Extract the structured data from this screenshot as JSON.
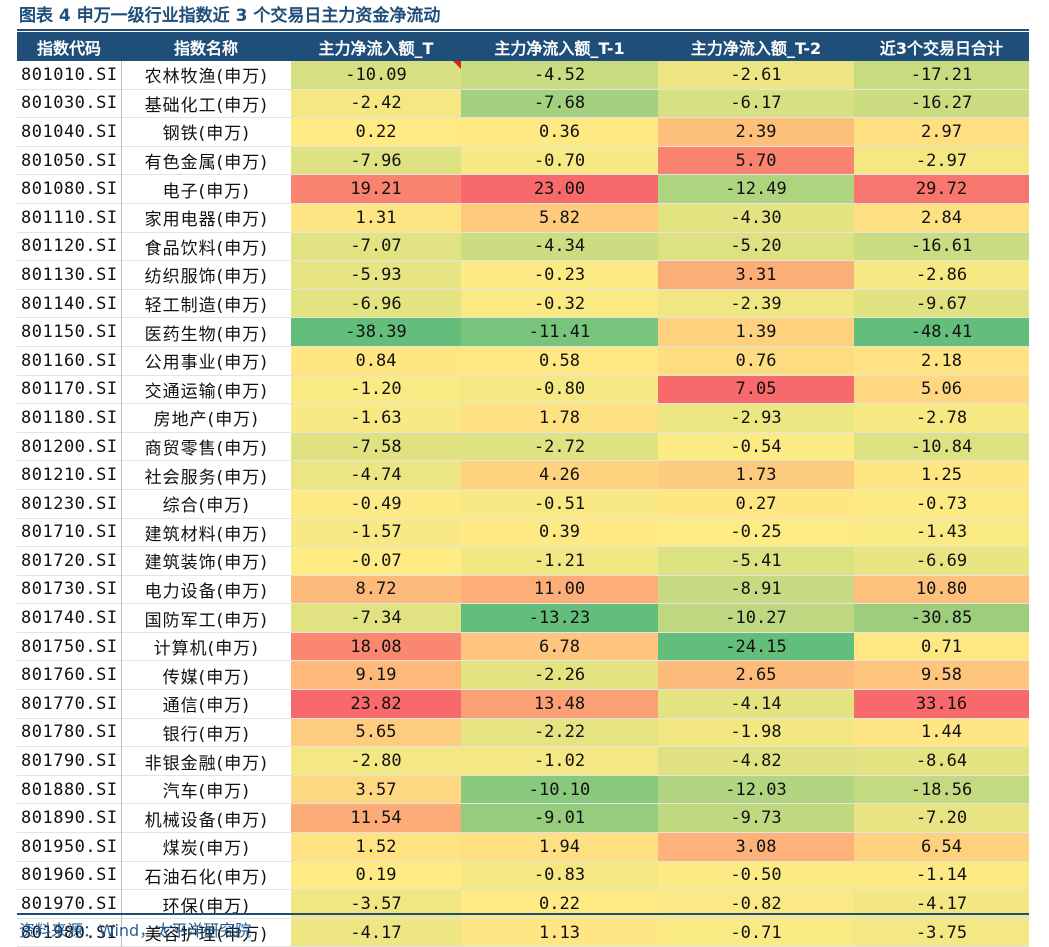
{
  "title": "图表 4  申万一级行业指数近 3 个交易日主力资金净流动",
  "source": "资料来源：Wind，太平洋研究院",
  "columns": [
    "指数代码",
    "指数名称",
    "主力净流入额_T",
    "主力净流入额_T-1",
    "主力净流入额_T-2",
    "近3个交易日合计"
  ],
  "color_scale": {
    "negative": "#63be7b",
    "mid": "#ffeb84",
    "positive": "#f8696b"
  },
  "rows": [
    {
      "code": "801010.SI",
      "name": "农林牧渔(申万)",
      "values": [
        "-10.09",
        "-4.52",
        "-2.61",
        "-17.21"
      ]
    },
    {
      "code": "801030.SI",
      "name": "基础化工(申万)",
      "values": [
        "-2.42",
        "-7.68",
        "-6.17",
        "-16.27"
      ]
    },
    {
      "code": "801040.SI",
      "name": "钢铁(申万)",
      "values": [
        "0.22",
        "0.36",
        "2.39",
        "2.97"
      ]
    },
    {
      "code": "801050.SI",
      "name": "有色金属(申万)",
      "values": [
        "-7.96",
        "-0.70",
        "5.70",
        "-2.97"
      ]
    },
    {
      "code": "801080.SI",
      "name": "电子(申万)",
      "values": [
        "19.21",
        "23.00",
        "-12.49",
        "29.72"
      ]
    },
    {
      "code": "801110.SI",
      "name": "家用电器(申万)",
      "values": [
        "1.31",
        "5.82",
        "-4.30",
        "2.84"
      ]
    },
    {
      "code": "801120.SI",
      "name": "食品饮料(申万)",
      "values": [
        "-7.07",
        "-4.34",
        "-5.20",
        "-16.61"
      ]
    },
    {
      "code": "801130.SI",
      "name": "纺织服饰(申万)",
      "values": [
        "-5.93",
        "-0.23",
        "3.31",
        "-2.86"
      ]
    },
    {
      "code": "801140.SI",
      "name": "轻工制造(申万)",
      "values": [
        "-6.96",
        "-0.32",
        "-2.39",
        "-9.67"
      ]
    },
    {
      "code": "801150.SI",
      "name": "医药生物(申万)",
      "values": [
        "-38.39",
        "-11.41",
        "1.39",
        "-48.41"
      ]
    },
    {
      "code": "801160.SI",
      "name": "公用事业(申万)",
      "values": [
        "0.84",
        "0.58",
        "0.76",
        "2.18"
      ]
    },
    {
      "code": "801170.SI",
      "name": "交通运输(申万)",
      "values": [
        "-1.20",
        "-0.80",
        "7.05",
        "5.06"
      ]
    },
    {
      "code": "801180.SI",
      "name": "房地产(申万)",
      "values": [
        "-1.63",
        "1.78",
        "-2.93",
        "-2.78"
      ]
    },
    {
      "code": "801200.SI",
      "name": "商贸零售(申万)",
      "values": [
        "-7.58",
        "-2.72",
        "-0.54",
        "-10.84"
      ]
    },
    {
      "code": "801210.SI",
      "name": "社会服务(申万)",
      "values": [
        "-4.74",
        "4.26",
        "1.73",
        "1.25"
      ]
    },
    {
      "code": "801230.SI",
      "name": "综合(申万)",
      "values": [
        "-0.49",
        "-0.51",
        "0.27",
        "-0.73"
      ]
    },
    {
      "code": "801710.SI",
      "name": "建筑材料(申万)",
      "values": [
        "-1.57",
        "0.39",
        "-0.25",
        "-1.43"
      ]
    },
    {
      "code": "801720.SI",
      "name": "建筑装饰(申万)",
      "values": [
        "-0.07",
        "-1.21",
        "-5.41",
        "-6.69"
      ]
    },
    {
      "code": "801730.SI",
      "name": "电力设备(申万)",
      "values": [
        "8.72",
        "11.00",
        "-8.91",
        "10.80"
      ]
    },
    {
      "code": "801740.SI",
      "name": "国防军工(申万)",
      "values": [
        "-7.34",
        "-13.23",
        "-10.27",
        "-30.85"
      ]
    },
    {
      "code": "801750.SI",
      "name": "计算机(申万)",
      "values": [
        "18.08",
        "6.78",
        "-24.15",
        "0.71"
      ]
    },
    {
      "code": "801760.SI",
      "name": "传媒(申万)",
      "values": [
        "9.19",
        "-2.26",
        "2.65",
        "9.58"
      ]
    },
    {
      "code": "801770.SI",
      "name": "通信(申万)",
      "values": [
        "23.82",
        "13.48",
        "-4.14",
        "33.16"
      ]
    },
    {
      "code": "801780.SI",
      "name": "银行(申万)",
      "values": [
        "5.65",
        "-2.22",
        "-1.98",
        "1.44"
      ]
    },
    {
      "code": "801790.SI",
      "name": "非银金融(申万)",
      "values": [
        "-2.80",
        "-1.02",
        "-4.82",
        "-8.64"
      ]
    },
    {
      "code": "801880.SI",
      "name": "汽车(申万)",
      "values": [
        "3.57",
        "-10.10",
        "-12.03",
        "-18.56"
      ]
    },
    {
      "code": "801890.SI",
      "name": "机械设备(申万)",
      "values": [
        "11.54",
        "-9.01",
        "-9.73",
        "-7.20"
      ]
    },
    {
      "code": "801950.SI",
      "name": "煤炭(申万)",
      "values": [
        "1.52",
        "1.94",
        "3.08",
        "6.54"
      ]
    },
    {
      "code": "801960.SI",
      "name": "石油石化(申万)",
      "values": [
        "0.19",
        "-0.83",
        "-0.50",
        "-1.14"
      ]
    },
    {
      "code": "801970.SI",
      "name": "环保(申万)",
      "values": [
        "-3.57",
        "0.22",
        "-0.82",
        "-4.17"
      ]
    },
    {
      "code": "801980.SI",
      "name": "美容护理(申万)",
      "values": [
        "-4.17",
        "1.13",
        "-0.71",
        "-3.75"
      ]
    }
  ]
}
